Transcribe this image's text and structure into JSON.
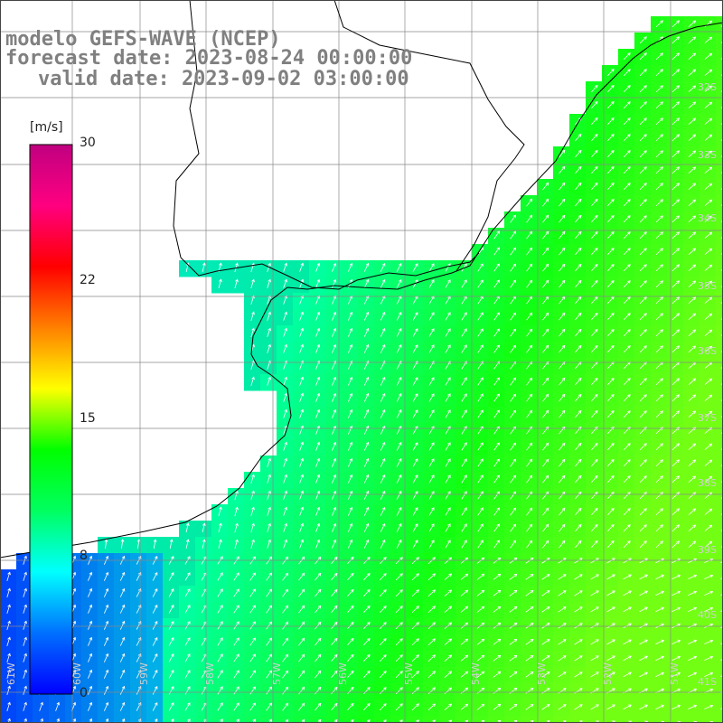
{
  "titles": {
    "line1": "modelo GEFS-WAVE (NCEP)",
    "line2": "forecast date: 2023-08-24 00:00:00",
    "line3": "valid date: 2023-09-02 03:00:00"
  },
  "colorbar": {
    "unit": "[m/s]",
    "ticks": [
      "30",
      "22",
      "15",
      "8",
      "0"
    ],
    "colors": [
      "#0000ff",
      "#0070ff",
      "#00ffff",
      "#00ff60",
      "#00ff00",
      "#ffff00",
      "#ff8000",
      "#ff0000",
      "#ff0080",
      "#c00080"
    ]
  },
  "axes": {
    "lon_labels": [
      "61W",
      "60W",
      "59W",
      "58W",
      "57W",
      "56W",
      "55W",
      "54W",
      "53W",
      "52W",
      "51W"
    ],
    "lat_labels": [
      "32S",
      "33S",
      "34S",
      "35S",
      "36S",
      "37S",
      "38S",
      "39S",
      "40S",
      "41S"
    ]
  },
  "palette": {
    "ocean_low": "#0050e0",
    "ocean_mid": "#00f0e0",
    "ocean_high": "#40ff20",
    "land": "#ffffff",
    "grid": "#888888",
    "coast": "#000000",
    "arrow": "#ffffff"
  }
}
